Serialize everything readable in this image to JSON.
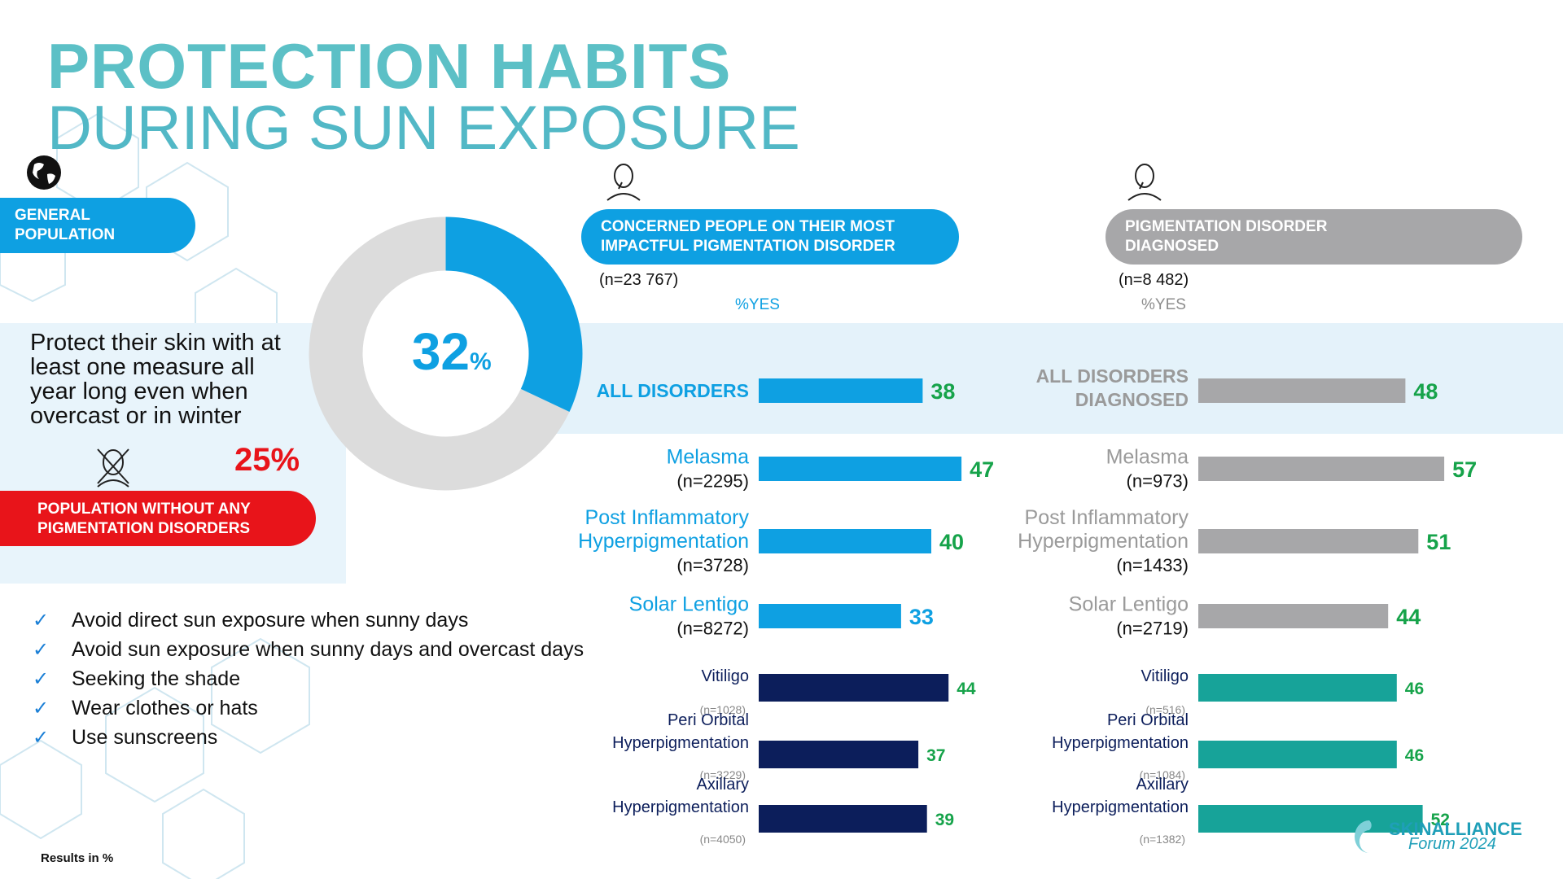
{
  "header": {
    "title_line1": "PROTECTION HABITS",
    "title_line2": "DURING SUN EXPOSURE"
  },
  "general_population": {
    "label_line1": "GENERAL",
    "label_line2": "POPULATION",
    "statement": "Protect their skin with at least one measure all year long even when overcast or in winter",
    "donut_value": "32",
    "donut_unit": "%"
  },
  "no_disorder_population": {
    "value": "25%",
    "label_line1": "POPULATION WITHOUT ANY",
    "label_line2": "PIGMENTATION DISORDERS"
  },
  "measures": [
    "Avoid direct sun exposure when sunny days",
    "Avoid sun exposure when sunny days and overcast days",
    "Seeking the shade",
    "Wear clothes or hats",
    "Use sunscreens"
  ],
  "concerned_panel": {
    "pill_line1": "CONCERNED PEOPLE ON THEIR MOST",
    "pill_line2": "IMPACTFUL  PIGMENTATION DISORDER",
    "n": "(n=23 767)",
    "yes_label": "%YES"
  },
  "diagnosed_panel": {
    "pill_line1": "PIGMENTATION DISORDER",
    "pill_line2": "DIAGNOSED",
    "n": "(n=8 482)",
    "yes_label": "%YES"
  },
  "footer": {
    "results_note": "Results in %",
    "brand_name": "SKINALLIANCE",
    "brand_sub": "Forum 2024"
  },
  "colors": {
    "accent_blue": "#0ea0e2",
    "navy": "#0c1e5b",
    "gray": "#a7a7a9",
    "teal": "#17a399",
    "value_green": "#16a34a",
    "red": "#e8141a",
    "title_teal": "#5cc0c6"
  },
  "chart_data": [
    {
      "type": "pie",
      "variant": "donut",
      "values": [
        32,
        68
      ],
      "unit": "%"
    },
    {
      "type": "bar",
      "orientation": "horizontal",
      "categories": [
        {
          "label": [
            "ALL DISORDERS"
          ],
          "n": ""
        },
        {
          "label": [
            "Melasma"
          ],
          "n": "(n=2295)"
        },
        {
          "label": [
            "Post Inflammatory",
            "Hyperpigmentation"
          ],
          "n": "(n=3728)"
        },
        {
          "label": [
            "Solar Lentigo"
          ],
          "n": "(n=8272)"
        },
        {
          "label": [
            "Vitiligo"
          ],
          "n": "(n=1028)"
        },
        {
          "label": [
            "Peri Orbital",
            "Hyperpigmentation"
          ],
          "n": "(n=3229)"
        },
        {
          "label": [
            "Axillary",
            "Hyperpigmentation"
          ],
          "n": "(n=4050)"
        }
      ],
      "values": [
        38,
        47,
        40,
        33,
        44,
        37,
        39
      ],
      "colors": [
        "#0ea0e2",
        "#0ea0e2",
        "#0ea0e2",
        "#0ea0e2",
        "#0c1e5b",
        "#0c1e5b",
        "#0c1e5b"
      ],
      "value_colors": [
        "#16a34a",
        "#16a34a",
        "#16a34a",
        "#0ea0e2",
        "#16a34a",
        "#16a34a",
        "#16a34a"
      ],
      "xlim": [
        0,
        100
      ]
    },
    {
      "type": "bar",
      "orientation": "horizontal",
      "categories": [
        {
          "label": [
            "ALL DISORDERS",
            "DIAGNOSED"
          ],
          "n": ""
        },
        {
          "label": [
            "Melasma"
          ],
          "n": "(n=973)"
        },
        {
          "label": [
            "Post Inflammatory",
            "Hyperpigmentation"
          ],
          "n": "(n=1433)"
        },
        {
          "label": [
            "Solar Lentigo"
          ],
          "n": "(n=2719)"
        },
        {
          "label": [
            "Vitiligo"
          ],
          "n": "(n=516)"
        },
        {
          "label": [
            "Peri Orbital",
            "Hyperpigmentation"
          ],
          "n": "(n=1084)"
        },
        {
          "label": [
            "Axillary",
            "Hyperpigmentation"
          ],
          "n": "(n=1382)"
        }
      ],
      "values": [
        48,
        57,
        51,
        44,
        46,
        46,
        52
      ],
      "colors": [
        "#a7a7a9",
        "#a7a7a9",
        "#a7a7a9",
        "#a7a7a9",
        "#17a399",
        "#17a399",
        "#17a399"
      ],
      "value_colors": [
        "#16a34a",
        "#16a34a",
        "#16a34a",
        "#16a34a",
        "#16a34a",
        "#16a34a",
        "#16a34a"
      ],
      "xlim": [
        0,
        100
      ]
    }
  ]
}
